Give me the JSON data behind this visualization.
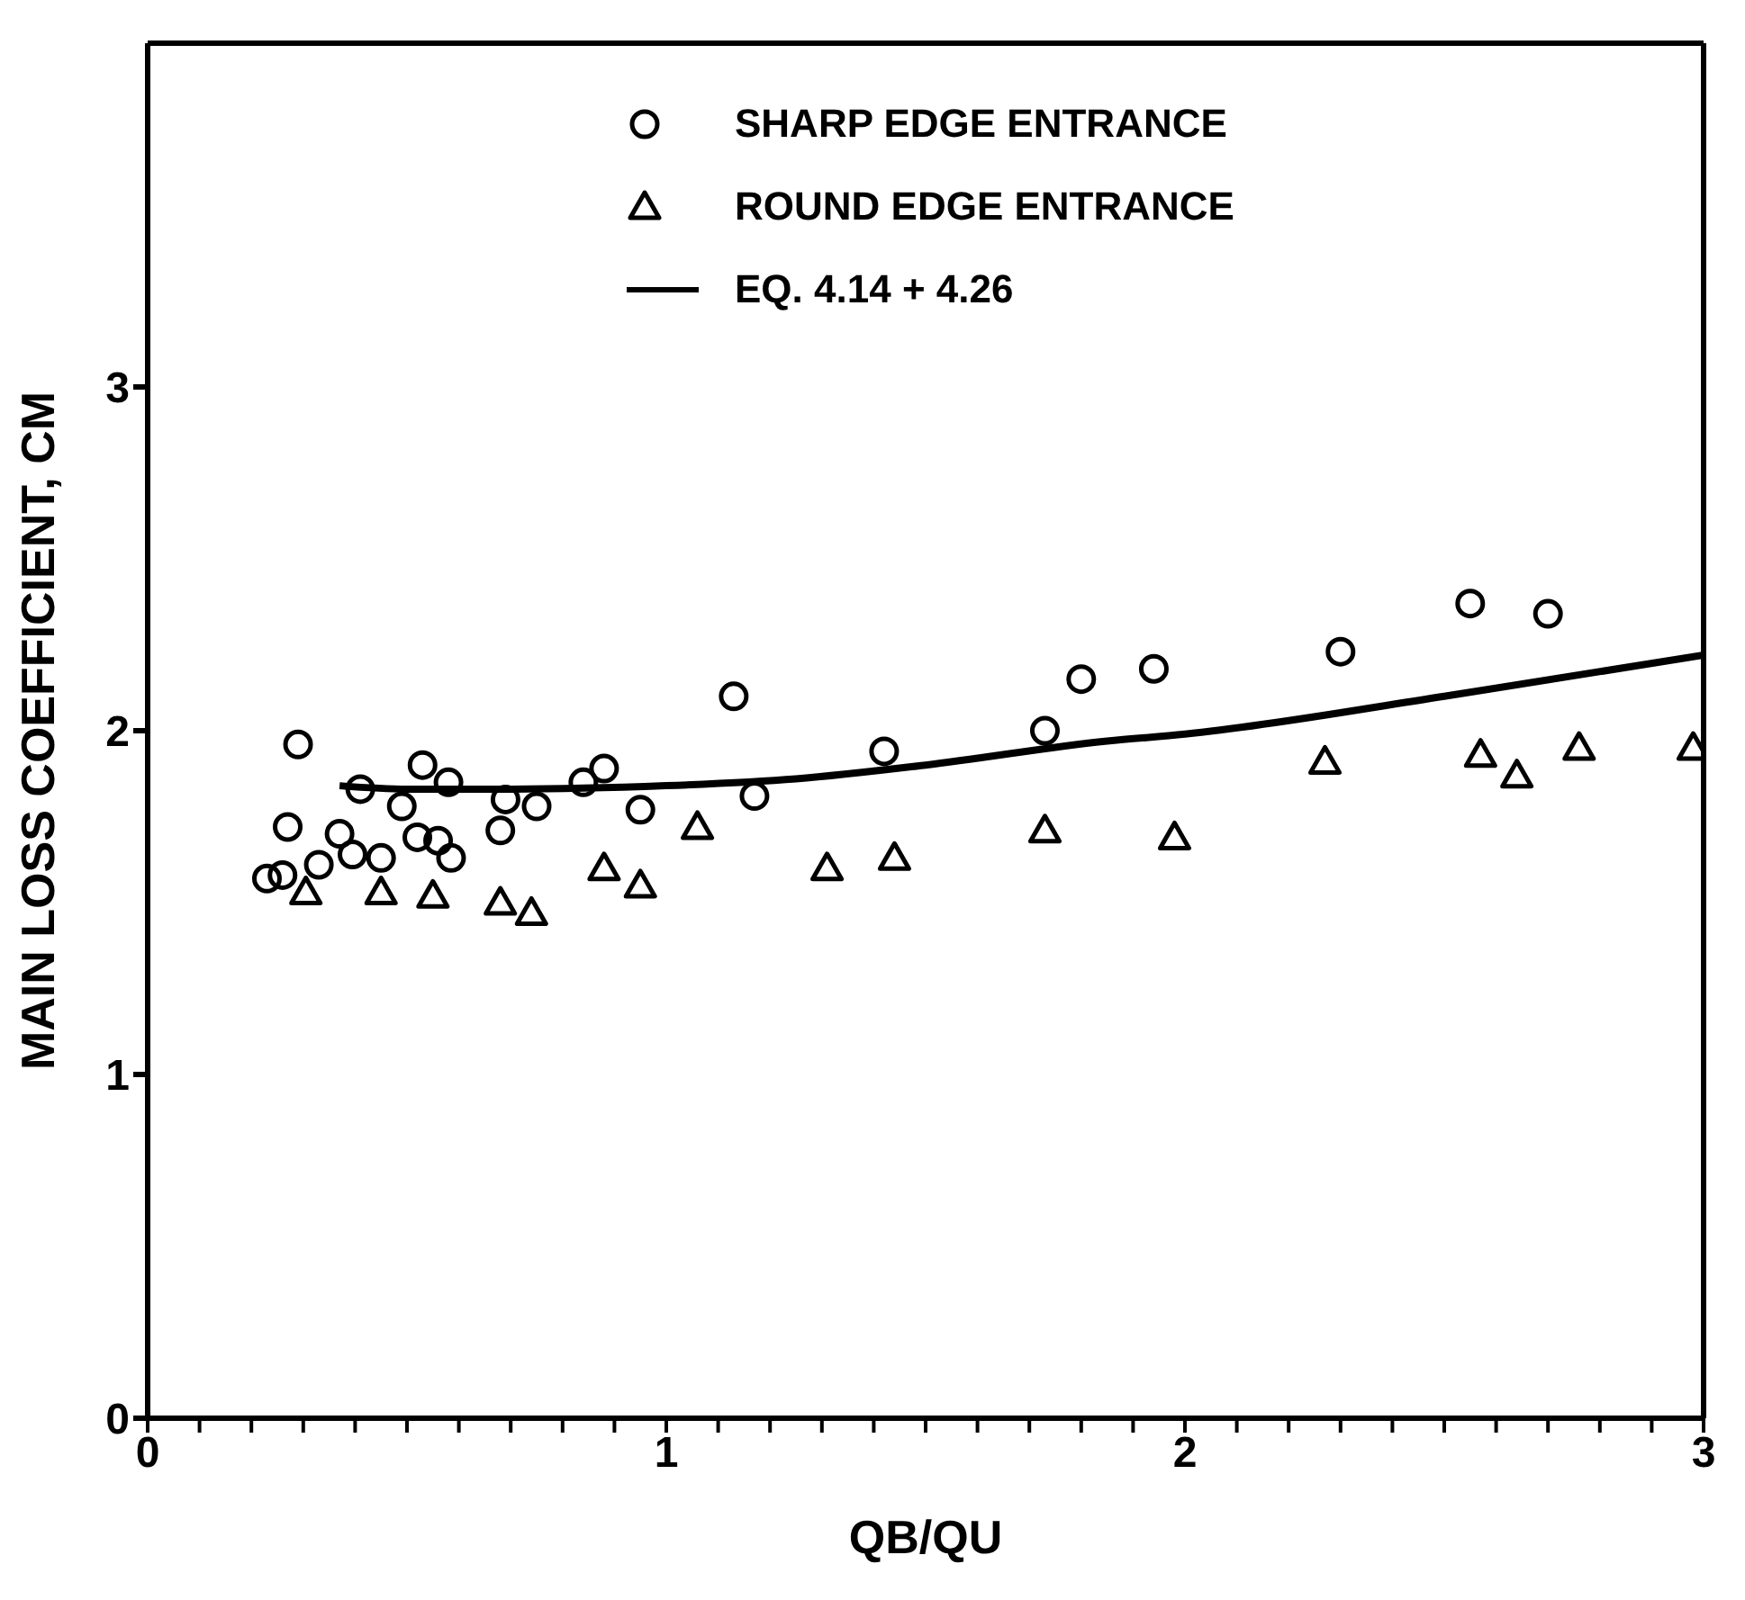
{
  "chart_data": {
    "type": "scatter",
    "xlabel": "QB/QU",
    "ylabel": "MAIN LOSS COEFFICIENT, CM",
    "xlim": [
      0,
      3
    ],
    "ylim": [
      0,
      4
    ],
    "xticks": [
      0,
      {
        "value": 0.1,
        "label": null
      },
      {
        "value": 0.2,
        "label": null
      },
      {
        "value": 0.3,
        "label": null
      },
      {
        "value": 0.4,
        "label": null
      },
      {
        "value": 0.5,
        "label": null
      },
      {
        "value": 0.6,
        "label": null
      },
      {
        "value": 0.7,
        "label": null
      },
      {
        "value": 0.8,
        "label": null
      },
      {
        "value": 0.9,
        "label": null
      },
      1,
      {
        "value": 1.1,
        "label": null
      },
      {
        "value": 1.2,
        "label": null
      },
      {
        "value": 1.3,
        "label": null
      },
      {
        "value": 1.4,
        "label": null
      },
      {
        "value": 1.5,
        "label": null
      },
      {
        "value": 1.6,
        "label": null
      },
      {
        "value": 1.7,
        "label": null
      },
      {
        "value": 1.8,
        "label": null
      },
      {
        "value": 1.9,
        "label": null
      },
      2,
      {
        "value": 2.1,
        "label": null
      },
      {
        "value": 2.2,
        "label": null
      },
      {
        "value": 2.3,
        "label": null
      },
      {
        "value": 2.4,
        "label": null
      },
      {
        "value": 2.5,
        "label": null
      },
      {
        "value": 2.6,
        "label": null
      },
      {
        "value": 2.7,
        "label": null
      },
      {
        "value": 2.8,
        "label": null
      },
      {
        "value": 2.9,
        "label": null
      },
      3
    ],
    "yticks": [
      0,
      1,
      2,
      3
    ],
    "legend": "top right",
    "series": [
      {
        "name": "SHARP EDGE ENTRANCE",
        "marker": "circle",
        "color": "#000000",
        "x": [
          0.23,
          0.26,
          0.27,
          0.29,
          0.33,
          0.37,
          0.395,
          0.41,
          0.45,
          0.49,
          0.52,
          0.53,
          0.56,
          0.58,
          0.585,
          0.68,
          0.69,
          0.75,
          0.84,
          0.88,
          0.95,
          1.13,
          1.17,
          1.42,
          1.73,
          1.8,
          1.94,
          2.3,
          2.55,
          2.7
        ],
        "values": [
          1.57,
          1.58,
          1.72,
          1.96,
          1.61,
          1.7,
          1.64,
          1.83,
          1.63,
          1.78,
          1.69,
          1.9,
          1.68,
          1.85,
          1.63,
          1.71,
          1.8,
          1.78,
          1.85,
          1.89,
          1.77,
          2.1,
          1.81,
          1.94,
          2.0,
          2.15,
          2.18,
          2.23,
          2.37,
          2.34
        ]
      },
      {
        "name": "ROUND EDGE ENTRANCE",
        "marker": "triangle",
        "color": "#000000",
        "x": [
          0.305,
          0.45,
          0.55,
          0.68,
          0.74,
          0.88,
          0.95,
          1.06,
          1.31,
          1.44,
          1.73,
          1.98,
          2.27,
          2.57,
          2.64,
          2.76,
          2.98
        ],
        "values": [
          1.53,
          1.53,
          1.52,
          1.5,
          1.47,
          1.6,
          1.55,
          1.72,
          1.6,
          1.63,
          1.71,
          1.69,
          1.91,
          1.93,
          1.87,
          1.95,
          1.95
        ]
      },
      {
        "name": "EQ. 4.14 + 4.26",
        "type": "line",
        "marker": "none",
        "line_style": "solid",
        "color": "#000000",
        "x": [
          0.37,
          0.5,
          0.7,
          1.0,
          1.25,
          1.5,
          1.85,
          2.0,
          2.5,
          3.0
        ],
        "values": [
          1.84,
          1.83,
          1.83,
          1.84,
          1.86,
          1.9,
          1.97,
          1.99,
          2.1,
          2.22
        ]
      }
    ]
  }
}
